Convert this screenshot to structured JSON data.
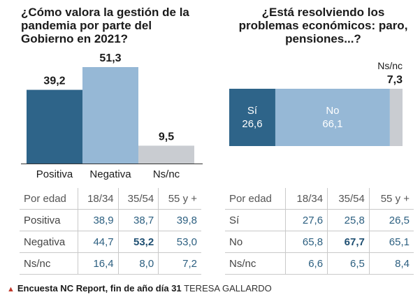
{
  "chart_data": [
    {
      "type": "bar",
      "title": "¿Cómo valora la gestión de la pandemia por parte del Gobierno en 2021?",
      "categories": [
        "Positiva",
        "Negativa",
        "Ns/nc"
      ],
      "values": [
        39.2,
        51.3,
        9.5
      ],
      "value_labels": [
        "39,2",
        "51,3",
        "9,5"
      ],
      "colors": [
        "#2e6489",
        "#96b8d6",
        "#c9ccd1"
      ],
      "ylim": [
        0,
        51.3
      ]
    },
    {
      "type": "bar",
      "orientation": "horizontal-stacked",
      "title": "¿Está resolviendo los problemas económicos: paro, pensiones...?",
      "categories": [
        "Sí",
        "No",
        "Ns/nc"
      ],
      "values": [
        26.6,
        66.1,
        7.3
      ],
      "value_labels": [
        "26,6",
        "66,1",
        "7,3"
      ],
      "colors": [
        "#2e6489",
        "#96b8d6",
        "#c9ccd1"
      ]
    }
  ],
  "left_table": {
    "header": [
      "Por edad",
      "18/34",
      "35/54",
      "55 y +"
    ],
    "rows": [
      [
        "Positiva",
        "38,9",
        "38,7",
        "39,8"
      ],
      [
        "Negativa",
        "44,7",
        "53,2",
        "53,0"
      ],
      [
        "Ns/nc",
        "16,4",
        "8,0",
        "7,2"
      ]
    ]
  },
  "right_table": {
    "header": [
      "Por edad",
      "18/34",
      "35/54",
      "55 y +"
    ],
    "rows": [
      [
        "Sí",
        "27,6",
        "25,8",
        "26,5"
      ],
      [
        "No",
        "65,8",
        "67,7",
        "65,1"
      ],
      [
        "Ns/nc",
        "6,6",
        "6,5",
        "8,4"
      ]
    ]
  },
  "footer": {
    "source": "Encuesta NC Report, fin de año día 31",
    "author": "TERESA GALLARDO"
  }
}
